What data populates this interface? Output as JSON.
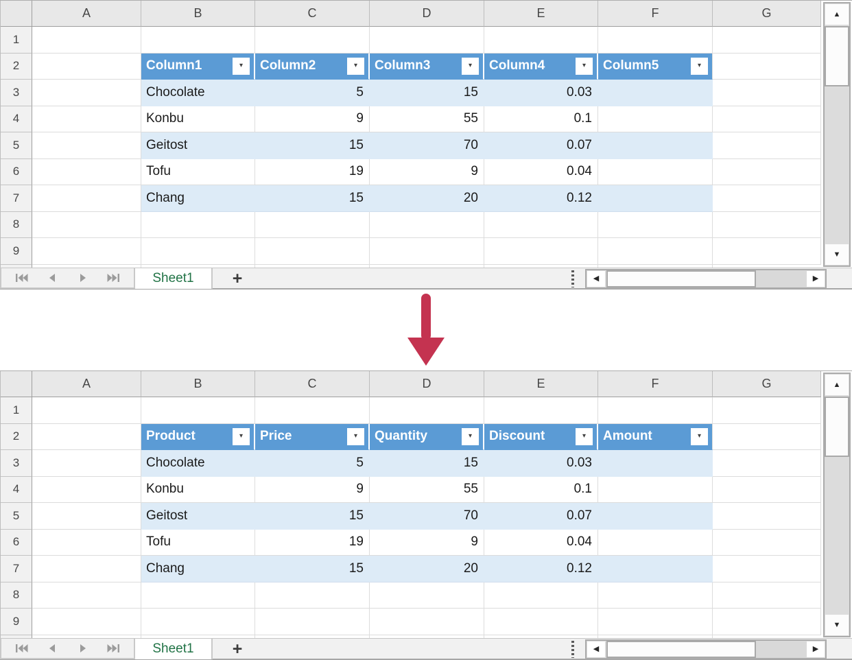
{
  "colors": {
    "table_header_blue": "#5b9bd5",
    "banded_row_blue": "#ddebf7",
    "sheet_tab_green": "#217346",
    "arrow_red": "#c43350",
    "chrome_gray": "#e8e8e8"
  },
  "icons": {
    "filter_dropdown": "▾",
    "scroll_left": "◀",
    "scroll_right": "▶",
    "scroll_up": "▲",
    "scroll_down": "▼"
  },
  "arrow": {
    "direction": "down",
    "color": "#c43350"
  },
  "sheets": [
    {
      "name": "before",
      "column_letters": [
        "A",
        "B",
        "C",
        "D",
        "E",
        "F",
        "G"
      ],
      "row_numbers": [
        "1",
        "2",
        "3",
        "4",
        "5",
        "6",
        "7",
        "8",
        "9"
      ],
      "table": {
        "headers": [
          "Column1",
          "Column2",
          "Column3",
          "Column4",
          "Column5"
        ],
        "rows": [
          [
            "Chocolate",
            "5",
            "15",
            "0.03",
            ""
          ],
          [
            "Konbu",
            "9",
            "55",
            "0.1",
            ""
          ],
          [
            "Geitost",
            "15",
            "70",
            "0.07",
            ""
          ],
          [
            "Tofu",
            "19",
            "9",
            "0.04",
            ""
          ],
          [
            "Chang",
            "15",
            "20",
            "0.12",
            ""
          ]
        ]
      },
      "tab_bar": {
        "sheet_name": "Sheet1",
        "add_sheet_label": "+"
      }
    },
    {
      "name": "after",
      "column_letters": [
        "A",
        "B",
        "C",
        "D",
        "E",
        "F",
        "G"
      ],
      "row_numbers": [
        "1",
        "2",
        "3",
        "4",
        "5",
        "6",
        "7",
        "8",
        "9"
      ],
      "table": {
        "headers": [
          "Product",
          "Price",
          "Quantity",
          "Discount",
          "Amount"
        ],
        "rows": [
          [
            "Chocolate",
            "5",
            "15",
            "0.03",
            ""
          ],
          [
            "Konbu",
            "9",
            "55",
            "0.1",
            ""
          ],
          [
            "Geitost",
            "15",
            "70",
            "0.07",
            ""
          ],
          [
            "Tofu",
            "19",
            "9",
            "0.04",
            ""
          ],
          [
            "Chang",
            "15",
            "20",
            "0.12",
            ""
          ]
        ]
      },
      "tab_bar": {
        "sheet_name": "Sheet1",
        "add_sheet_label": "+"
      }
    }
  ]
}
